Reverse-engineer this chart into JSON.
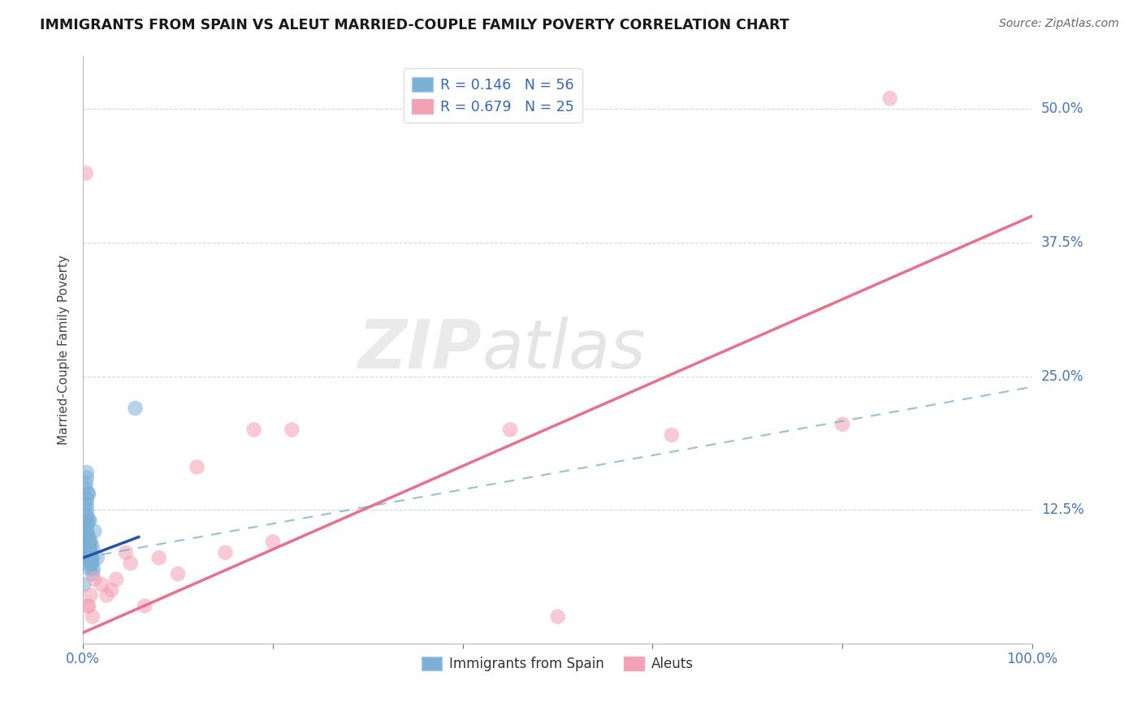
{
  "title": "IMMIGRANTS FROM SPAIN VS ALEUT MARRIED-COUPLE FAMILY POVERTY CORRELATION CHART",
  "source": "Source: ZipAtlas.com",
  "ylabel": "Married-Couple Family Poverty",
  "xlim": [
    0,
    100
  ],
  "ylim": [
    0,
    55
  ],
  "yticks": [
    0,
    12.5,
    25.0,
    37.5,
    50.0
  ],
  "xticks": [
    0,
    20,
    40,
    60,
    80,
    100
  ],
  "xtick_labels": [
    "0.0%",
    "",
    "",
    "",
    "",
    "100.0%"
  ],
  "ytick_labels": [
    "",
    "12.5%",
    "25.0%",
    "37.5%",
    "50.0%"
  ],
  "blue_R": 0.146,
  "blue_N": 56,
  "pink_R": 0.679,
  "pink_N": 25,
  "blue_color": "#7BAFD4",
  "pink_color": "#F4A0B5",
  "blue_line_color": "#2255AA",
  "pink_line_color": "#E8708A",
  "blue_dash_color": "#7BAFD4",
  "legend_label_blue": "Immigrants from Spain",
  "legend_label_pink": "Aleuts",
  "watermark_zip": "ZIP",
  "watermark_atlas": "atlas",
  "blue_points_x": [
    0.3,
    0.5,
    0.8,
    1.0,
    1.2,
    1.5,
    0.4,
    0.7,
    0.2,
    0.6,
    1.0,
    0.9,
    0.3,
    0.5,
    0.6,
    0.8,
    1.1,
    0.4,
    0.7,
    0.9,
    0.2,
    0.3,
    0.4,
    0.6,
    0.8,
    0.2,
    0.3,
    0.5,
    0.7,
    1.0,
    0.3,
    0.4,
    0.6,
    0.9,
    0.4,
    0.6,
    0.3,
    0.4,
    0.7,
    0.8,
    0.2,
    0.3,
    0.5,
    0.7,
    0.3,
    0.4,
    0.6,
    0.9,
    0.4,
    0.6,
    0.3,
    0.5,
    0.4,
    0.4,
    5.5,
    0.1
  ],
  "blue_points_y": [
    8.5,
    10.0,
    9.5,
    9.0,
    10.5,
    8.0,
    12.5,
    11.5,
    7.5,
    9.5,
    8.0,
    7.5,
    10.5,
    9.0,
    8.5,
    7.5,
    7.0,
    11.0,
    9.5,
    8.0,
    10.0,
    11.5,
    13.0,
    14.0,
    8.5,
    13.0,
    10.0,
    9.0,
    7.0,
    6.5,
    8.5,
    10.5,
    9.0,
    7.5,
    12.0,
    11.5,
    14.5,
    13.5,
    8.0,
    9.0,
    11.0,
    10.0,
    9.5,
    8.0,
    12.0,
    11.5,
    10.0,
    7.5,
    9.0,
    8.5,
    15.0,
    14.0,
    16.0,
    15.5,
    22.0,
    5.5
  ],
  "pink_points_x": [
    0.5,
    1.0,
    2.0,
    3.5,
    5.0,
    8.0,
    10.0,
    15.0,
    22.0,
    45.0,
    50.0,
    62.0,
    0.3,
    1.2,
    2.5,
    3.0,
    4.5,
    6.5,
    0.8,
    12.0,
    18.0,
    85.0,
    20.0,
    80.0,
    0.6
  ],
  "pink_points_y": [
    3.5,
    2.5,
    5.5,
    6.0,
    7.5,
    8.0,
    6.5,
    8.5,
    20.0,
    20.0,
    2.5,
    19.5,
    44.0,
    6.0,
    4.5,
    5.0,
    8.5,
    3.5,
    4.5,
    16.5,
    20.0,
    51.0,
    9.5,
    20.5,
    3.5
  ],
  "blue_line_x0": 0.0,
  "blue_line_y0": 8.0,
  "blue_line_x1": 6.0,
  "blue_line_y1": 10.0,
  "blue_dash_x0": 0.0,
  "blue_dash_y0": 8.0,
  "blue_dash_x1": 100.0,
  "blue_dash_y1": 24.0,
  "pink_line_x0": 0.0,
  "pink_line_y0": 1.0,
  "pink_line_x1": 100.0,
  "pink_line_y1": 40.0
}
